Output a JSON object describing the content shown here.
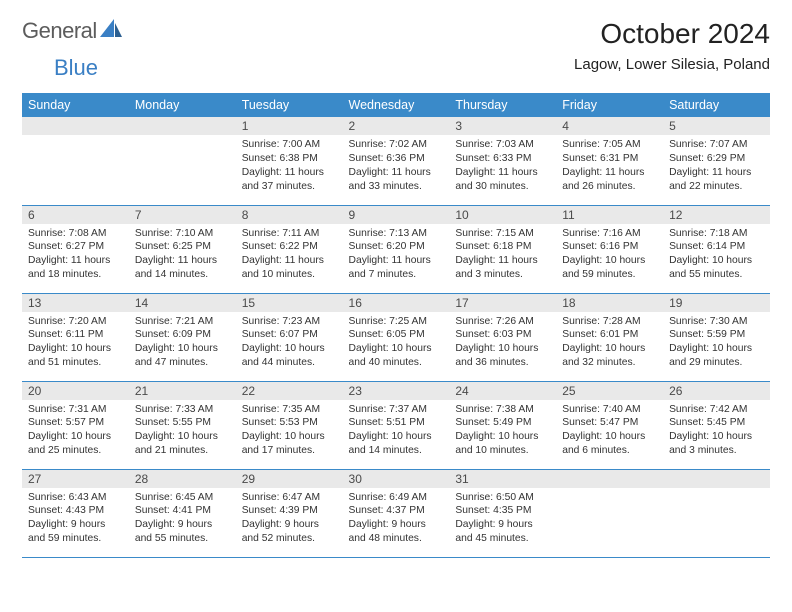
{
  "logo": {
    "word1": "General",
    "word2": "Blue"
  },
  "title": "October 2024",
  "location": "Lagow, Lower Silesia, Poland",
  "colors": {
    "header_bg": "#3a8ac9",
    "header_fg": "#ffffff",
    "daynum_bg": "#e9e9e9",
    "daynum_fg": "#4a4a4a",
    "rule": "#3a8ac9",
    "logo_gray": "#5c5c5c",
    "logo_blue": "#3a7fc4"
  },
  "day_headers": [
    "Sunday",
    "Monday",
    "Tuesday",
    "Wednesday",
    "Thursday",
    "Friday",
    "Saturday"
  ],
  "weeks": [
    [
      null,
      null,
      {
        "n": "1",
        "sr": "7:00 AM",
        "ss": "6:38 PM",
        "dl": "11 hours and 37 minutes."
      },
      {
        "n": "2",
        "sr": "7:02 AM",
        "ss": "6:36 PM",
        "dl": "11 hours and 33 minutes."
      },
      {
        "n": "3",
        "sr": "7:03 AM",
        "ss": "6:33 PM",
        "dl": "11 hours and 30 minutes."
      },
      {
        "n": "4",
        "sr": "7:05 AM",
        "ss": "6:31 PM",
        "dl": "11 hours and 26 minutes."
      },
      {
        "n": "5",
        "sr": "7:07 AM",
        "ss": "6:29 PM",
        "dl": "11 hours and 22 minutes."
      }
    ],
    [
      {
        "n": "6",
        "sr": "7:08 AM",
        "ss": "6:27 PM",
        "dl": "11 hours and 18 minutes."
      },
      {
        "n": "7",
        "sr": "7:10 AM",
        "ss": "6:25 PM",
        "dl": "11 hours and 14 minutes."
      },
      {
        "n": "8",
        "sr": "7:11 AM",
        "ss": "6:22 PM",
        "dl": "11 hours and 10 minutes."
      },
      {
        "n": "9",
        "sr": "7:13 AM",
        "ss": "6:20 PM",
        "dl": "11 hours and 7 minutes."
      },
      {
        "n": "10",
        "sr": "7:15 AM",
        "ss": "6:18 PM",
        "dl": "11 hours and 3 minutes."
      },
      {
        "n": "11",
        "sr": "7:16 AM",
        "ss": "6:16 PM",
        "dl": "10 hours and 59 minutes."
      },
      {
        "n": "12",
        "sr": "7:18 AM",
        "ss": "6:14 PM",
        "dl": "10 hours and 55 minutes."
      }
    ],
    [
      {
        "n": "13",
        "sr": "7:20 AM",
        "ss": "6:11 PM",
        "dl": "10 hours and 51 minutes."
      },
      {
        "n": "14",
        "sr": "7:21 AM",
        "ss": "6:09 PM",
        "dl": "10 hours and 47 minutes."
      },
      {
        "n": "15",
        "sr": "7:23 AM",
        "ss": "6:07 PM",
        "dl": "10 hours and 44 minutes."
      },
      {
        "n": "16",
        "sr": "7:25 AM",
        "ss": "6:05 PM",
        "dl": "10 hours and 40 minutes."
      },
      {
        "n": "17",
        "sr": "7:26 AM",
        "ss": "6:03 PM",
        "dl": "10 hours and 36 minutes."
      },
      {
        "n": "18",
        "sr": "7:28 AM",
        "ss": "6:01 PM",
        "dl": "10 hours and 32 minutes."
      },
      {
        "n": "19",
        "sr": "7:30 AM",
        "ss": "5:59 PM",
        "dl": "10 hours and 29 minutes."
      }
    ],
    [
      {
        "n": "20",
        "sr": "7:31 AM",
        "ss": "5:57 PM",
        "dl": "10 hours and 25 minutes."
      },
      {
        "n": "21",
        "sr": "7:33 AM",
        "ss": "5:55 PM",
        "dl": "10 hours and 21 minutes."
      },
      {
        "n": "22",
        "sr": "7:35 AM",
        "ss": "5:53 PM",
        "dl": "10 hours and 17 minutes."
      },
      {
        "n": "23",
        "sr": "7:37 AM",
        "ss": "5:51 PM",
        "dl": "10 hours and 14 minutes."
      },
      {
        "n": "24",
        "sr": "7:38 AM",
        "ss": "5:49 PM",
        "dl": "10 hours and 10 minutes."
      },
      {
        "n": "25",
        "sr": "7:40 AM",
        "ss": "5:47 PM",
        "dl": "10 hours and 6 minutes."
      },
      {
        "n": "26",
        "sr": "7:42 AM",
        "ss": "5:45 PM",
        "dl": "10 hours and 3 minutes."
      }
    ],
    [
      {
        "n": "27",
        "sr": "6:43 AM",
        "ss": "4:43 PM",
        "dl": "9 hours and 59 minutes."
      },
      {
        "n": "28",
        "sr": "6:45 AM",
        "ss": "4:41 PM",
        "dl": "9 hours and 55 minutes."
      },
      {
        "n": "29",
        "sr": "6:47 AM",
        "ss": "4:39 PM",
        "dl": "9 hours and 52 minutes."
      },
      {
        "n": "30",
        "sr": "6:49 AM",
        "ss": "4:37 PM",
        "dl": "9 hours and 48 minutes."
      },
      {
        "n": "31",
        "sr": "6:50 AM",
        "ss": "4:35 PM",
        "dl": "9 hours and 45 minutes."
      },
      null,
      null
    ]
  ],
  "labels": {
    "sunrise": "Sunrise:",
    "sunset": "Sunset:",
    "daylight": "Daylight:"
  }
}
